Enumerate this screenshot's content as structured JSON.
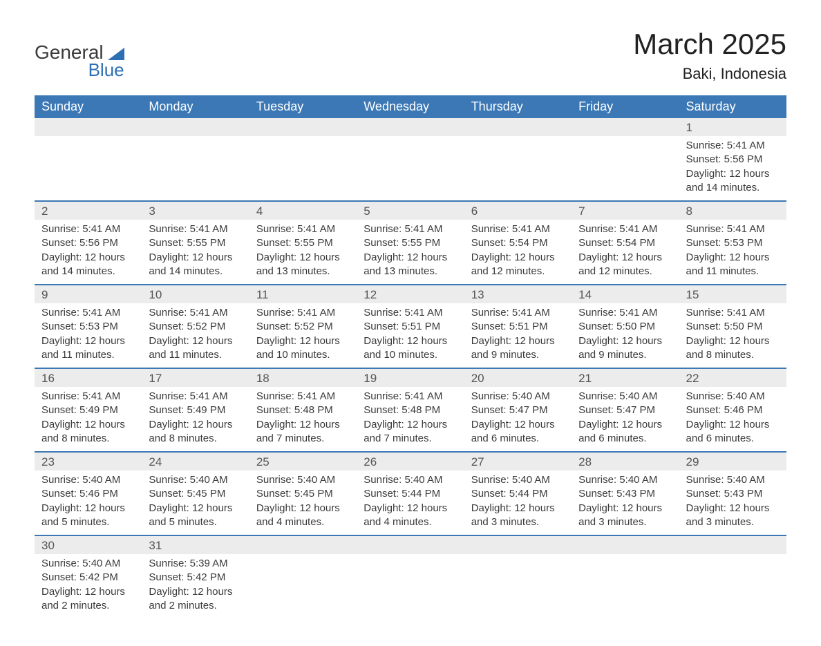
{
  "logo": {
    "text1": "General",
    "text2": "Blue"
  },
  "header": {
    "title": "March 2025",
    "location": "Baki, Indonesia"
  },
  "colors": {
    "header_bg": "#3b78b5",
    "header_text": "#ffffff",
    "daynum_bg": "#ececec",
    "row_border": "#3b78b5",
    "body_text": "#3a3a3a",
    "logo_blue": "#2d6fb3"
  },
  "weekdays": [
    "Sunday",
    "Monday",
    "Tuesday",
    "Wednesday",
    "Thursday",
    "Friday",
    "Saturday"
  ],
  "weeks": [
    [
      null,
      null,
      null,
      null,
      null,
      null,
      {
        "n": "1",
        "sunrise": "Sunrise: 5:41 AM",
        "sunset": "Sunset: 5:56 PM",
        "daylight": "Daylight: 12 hours and 14 minutes."
      }
    ],
    [
      {
        "n": "2",
        "sunrise": "Sunrise: 5:41 AM",
        "sunset": "Sunset: 5:56 PM",
        "daylight": "Daylight: 12 hours and 14 minutes."
      },
      {
        "n": "3",
        "sunrise": "Sunrise: 5:41 AM",
        "sunset": "Sunset: 5:55 PM",
        "daylight": "Daylight: 12 hours and 14 minutes."
      },
      {
        "n": "4",
        "sunrise": "Sunrise: 5:41 AM",
        "sunset": "Sunset: 5:55 PM",
        "daylight": "Daylight: 12 hours and 13 minutes."
      },
      {
        "n": "5",
        "sunrise": "Sunrise: 5:41 AM",
        "sunset": "Sunset: 5:55 PM",
        "daylight": "Daylight: 12 hours and 13 minutes."
      },
      {
        "n": "6",
        "sunrise": "Sunrise: 5:41 AM",
        "sunset": "Sunset: 5:54 PM",
        "daylight": "Daylight: 12 hours and 12 minutes."
      },
      {
        "n": "7",
        "sunrise": "Sunrise: 5:41 AM",
        "sunset": "Sunset: 5:54 PM",
        "daylight": "Daylight: 12 hours and 12 minutes."
      },
      {
        "n": "8",
        "sunrise": "Sunrise: 5:41 AM",
        "sunset": "Sunset: 5:53 PM",
        "daylight": "Daylight: 12 hours and 11 minutes."
      }
    ],
    [
      {
        "n": "9",
        "sunrise": "Sunrise: 5:41 AM",
        "sunset": "Sunset: 5:53 PM",
        "daylight": "Daylight: 12 hours and 11 minutes."
      },
      {
        "n": "10",
        "sunrise": "Sunrise: 5:41 AM",
        "sunset": "Sunset: 5:52 PM",
        "daylight": "Daylight: 12 hours and 11 minutes."
      },
      {
        "n": "11",
        "sunrise": "Sunrise: 5:41 AM",
        "sunset": "Sunset: 5:52 PM",
        "daylight": "Daylight: 12 hours and 10 minutes."
      },
      {
        "n": "12",
        "sunrise": "Sunrise: 5:41 AM",
        "sunset": "Sunset: 5:51 PM",
        "daylight": "Daylight: 12 hours and 10 minutes."
      },
      {
        "n": "13",
        "sunrise": "Sunrise: 5:41 AM",
        "sunset": "Sunset: 5:51 PM",
        "daylight": "Daylight: 12 hours and 9 minutes."
      },
      {
        "n": "14",
        "sunrise": "Sunrise: 5:41 AM",
        "sunset": "Sunset: 5:50 PM",
        "daylight": "Daylight: 12 hours and 9 minutes."
      },
      {
        "n": "15",
        "sunrise": "Sunrise: 5:41 AM",
        "sunset": "Sunset: 5:50 PM",
        "daylight": "Daylight: 12 hours and 8 minutes."
      }
    ],
    [
      {
        "n": "16",
        "sunrise": "Sunrise: 5:41 AM",
        "sunset": "Sunset: 5:49 PM",
        "daylight": "Daylight: 12 hours and 8 minutes."
      },
      {
        "n": "17",
        "sunrise": "Sunrise: 5:41 AM",
        "sunset": "Sunset: 5:49 PM",
        "daylight": "Daylight: 12 hours and 8 minutes."
      },
      {
        "n": "18",
        "sunrise": "Sunrise: 5:41 AM",
        "sunset": "Sunset: 5:48 PM",
        "daylight": "Daylight: 12 hours and 7 minutes."
      },
      {
        "n": "19",
        "sunrise": "Sunrise: 5:41 AM",
        "sunset": "Sunset: 5:48 PM",
        "daylight": "Daylight: 12 hours and 7 minutes."
      },
      {
        "n": "20",
        "sunrise": "Sunrise: 5:40 AM",
        "sunset": "Sunset: 5:47 PM",
        "daylight": "Daylight: 12 hours and 6 minutes."
      },
      {
        "n": "21",
        "sunrise": "Sunrise: 5:40 AM",
        "sunset": "Sunset: 5:47 PM",
        "daylight": "Daylight: 12 hours and 6 minutes."
      },
      {
        "n": "22",
        "sunrise": "Sunrise: 5:40 AM",
        "sunset": "Sunset: 5:46 PM",
        "daylight": "Daylight: 12 hours and 6 minutes."
      }
    ],
    [
      {
        "n": "23",
        "sunrise": "Sunrise: 5:40 AM",
        "sunset": "Sunset: 5:46 PM",
        "daylight": "Daylight: 12 hours and 5 minutes."
      },
      {
        "n": "24",
        "sunrise": "Sunrise: 5:40 AM",
        "sunset": "Sunset: 5:45 PM",
        "daylight": "Daylight: 12 hours and 5 minutes."
      },
      {
        "n": "25",
        "sunrise": "Sunrise: 5:40 AM",
        "sunset": "Sunset: 5:45 PM",
        "daylight": "Daylight: 12 hours and 4 minutes."
      },
      {
        "n": "26",
        "sunrise": "Sunrise: 5:40 AM",
        "sunset": "Sunset: 5:44 PM",
        "daylight": "Daylight: 12 hours and 4 minutes."
      },
      {
        "n": "27",
        "sunrise": "Sunrise: 5:40 AM",
        "sunset": "Sunset: 5:44 PM",
        "daylight": "Daylight: 12 hours and 3 minutes."
      },
      {
        "n": "28",
        "sunrise": "Sunrise: 5:40 AM",
        "sunset": "Sunset: 5:43 PM",
        "daylight": "Daylight: 12 hours and 3 minutes."
      },
      {
        "n": "29",
        "sunrise": "Sunrise: 5:40 AM",
        "sunset": "Sunset: 5:43 PM",
        "daylight": "Daylight: 12 hours and 3 minutes."
      }
    ],
    [
      {
        "n": "30",
        "sunrise": "Sunrise: 5:40 AM",
        "sunset": "Sunset: 5:42 PM",
        "daylight": "Daylight: 12 hours and 2 minutes."
      },
      {
        "n": "31",
        "sunrise": "Sunrise: 5:39 AM",
        "sunset": "Sunset: 5:42 PM",
        "daylight": "Daylight: 12 hours and 2 minutes."
      },
      null,
      null,
      null,
      null,
      null
    ]
  ]
}
